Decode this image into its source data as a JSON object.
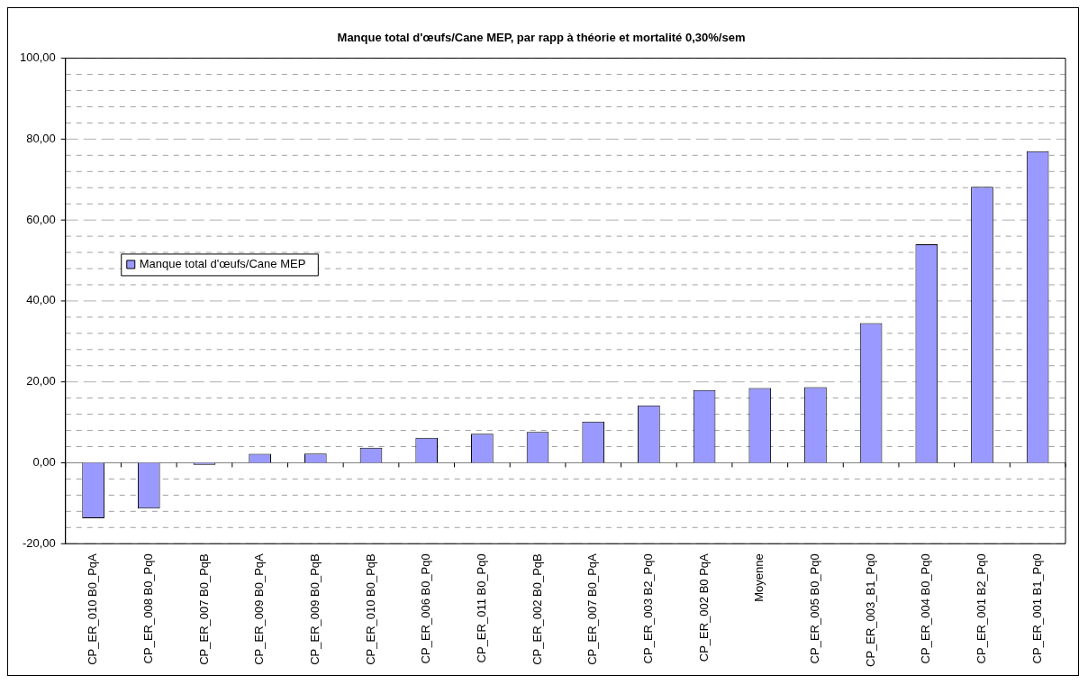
{
  "chart_data": {
    "type": "bar",
    "title": "Manque total d'œufs/Cane MEP, par rapp à théorie et mortalité 0,30%/sem",
    "categories": [
      "CP_ER_010 B0_PqA",
      "CP_ER_008 B0_Pq0",
      "CP_ER_007 B0_PqB",
      "CP_ER_009 B0_PqA",
      "CP_ER_009 B0_PqB",
      "CP_ER_010 B0_PqB",
      "CP_ER_006 B0_Pq0",
      "CP_ER_011 B0_Pq0",
      "CP_ER_002 B0_PqB",
      "CP_ER_007 B0_PqA",
      "CP_ER_003 B2_Pq0",
      "CP_ER_002 B0 PqA",
      "Moyenne",
      "CP_ER_005 B0_Pq0",
      "CP_ER_003_B1_Pq0",
      "CP_ER_004 B0_Pq0",
      "CP_ER_001 B2_Pq0",
      "CP_ER_001 B1_Pq0"
    ],
    "series": [
      {
        "name": "Manque total d'œufs/Cane MEP",
        "color": "#9999ff",
        "values": [
          -13.7,
          -11.3,
          -0.5,
          2.2,
          2.3,
          3.7,
          6.2,
          7.2,
          7.6,
          10.2,
          14.2,
          18.0,
          18.5,
          18.7,
          34.5,
          54.0,
          68.2,
          77.0
        ]
      }
    ],
    "ylim": [
      -20,
      100
    ],
    "yticks": [
      {
        "value": -20,
        "label": "-20,00"
      },
      {
        "value": -16,
        "label": null
      },
      {
        "value": -12,
        "label": null
      },
      {
        "value": -8,
        "label": null
      },
      {
        "value": -4,
        "label": null
      },
      {
        "value": 0,
        "label": "0,00"
      },
      {
        "value": 4,
        "label": null
      },
      {
        "value": 8,
        "label": null
      },
      {
        "value": 12,
        "label": null
      },
      {
        "value": 16,
        "label": null
      },
      {
        "value": 20,
        "label": "20,00"
      },
      {
        "value": 24,
        "label": null
      },
      {
        "value": 28,
        "label": null
      },
      {
        "value": 32,
        "label": null
      },
      {
        "value": 36,
        "label": null
      },
      {
        "value": 40,
        "label": "40,00"
      },
      {
        "value": 44,
        "label": null
      },
      {
        "value": 48,
        "label": null
      },
      {
        "value": 52,
        "label": null
      },
      {
        "value": 56,
        "label": null
      },
      {
        "value": 60,
        "label": "60,00"
      },
      {
        "value": 64,
        "label": null
      },
      {
        "value": 68,
        "label": null
      },
      {
        "value": 72,
        "label": null
      },
      {
        "value": 76,
        "label": null
      },
      {
        "value": 80,
        "label": "80,00"
      },
      {
        "value": 84,
        "label": null
      },
      {
        "value": 88,
        "label": null
      },
      {
        "value": 92,
        "label": null
      },
      {
        "value": 96,
        "label": null
      },
      {
        "value": 100,
        "label": "100,00"
      }
    ],
    "grid": "y",
    "legend": "left"
  }
}
